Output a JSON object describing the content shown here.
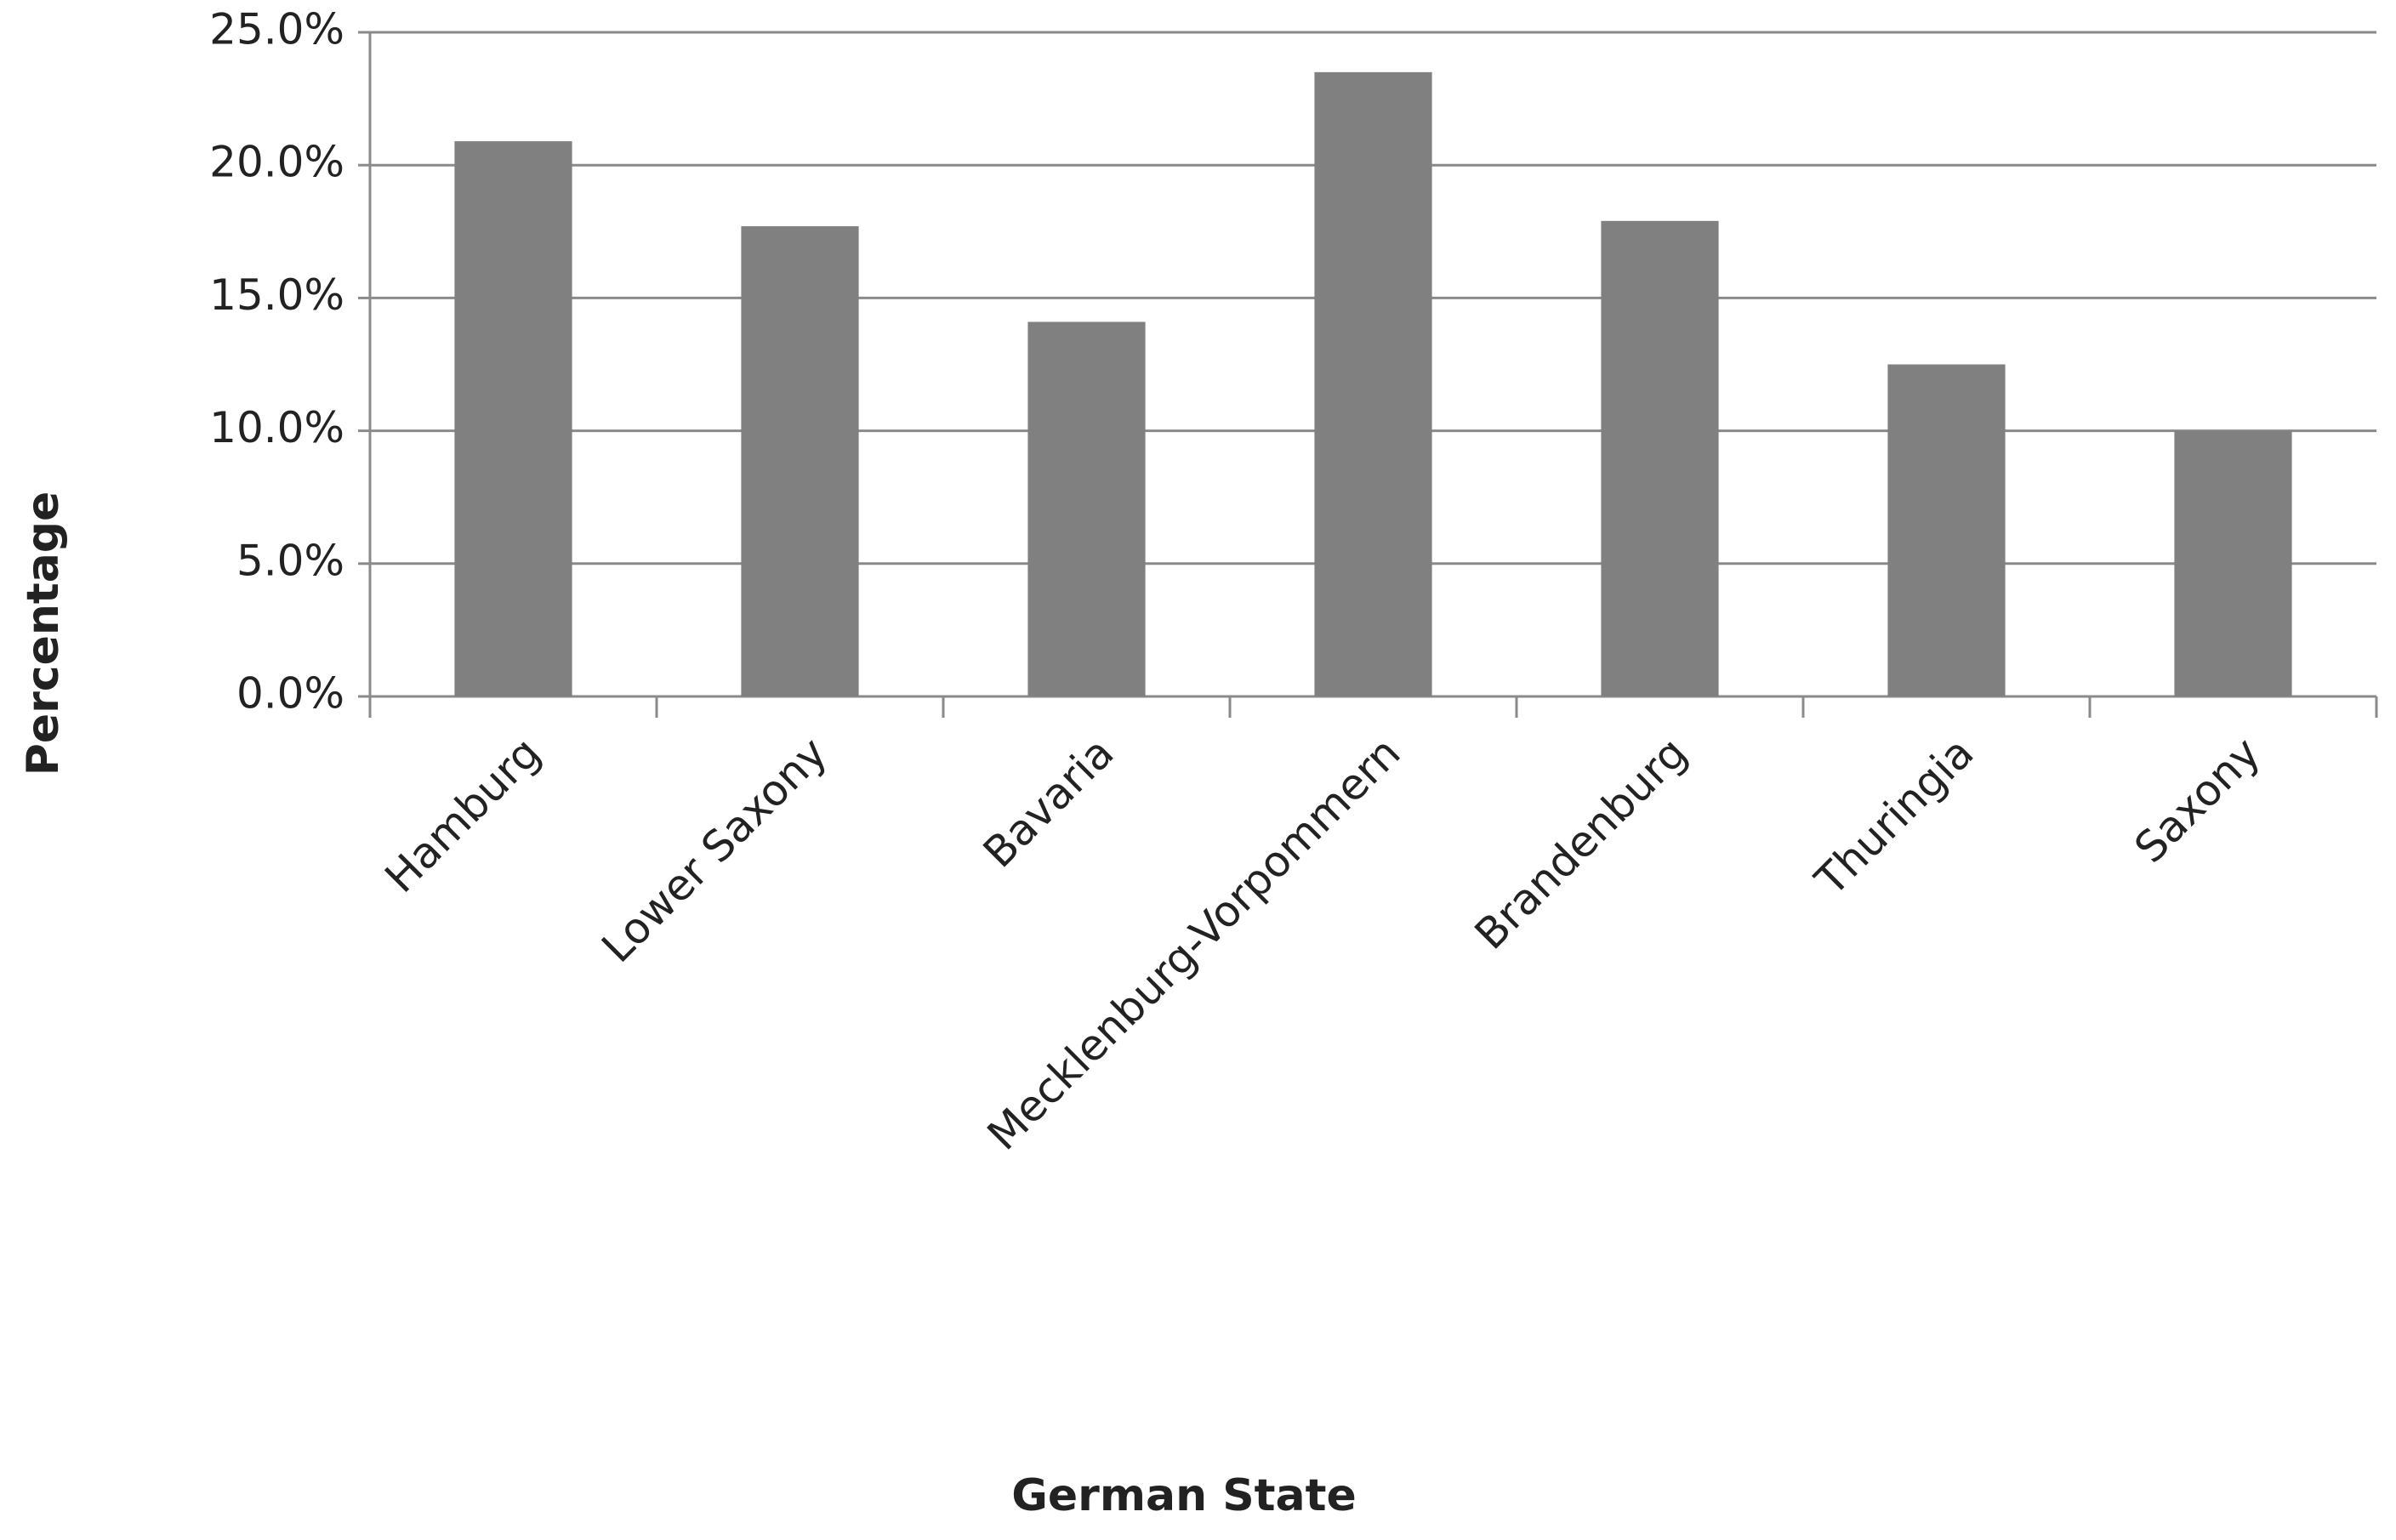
{
  "chart_data": {
    "type": "bar",
    "x_label": "German State",
    "y_label": "Percentage",
    "categories": [
      "Hamburg",
      "Lower Saxony",
      "Bavaria",
      "Mecklenburg-Vorpommern",
      "Brandenburg",
      "Thuringia",
      "Saxony"
    ],
    "values": [
      20.9,
      17.7,
      14.1,
      23.5,
      17.9,
      12.5,
      10.0
    ],
    "color": "#808080",
    "ylim": [
      0,
      25
    ],
    "yticks": [
      {
        "value": 0,
        "label": "0.0%"
      },
      {
        "value": 5,
        "label": "5.0%"
      },
      {
        "value": 10,
        "label": "10.0%"
      },
      {
        "value": 15,
        "label": "15.0%"
      },
      {
        "value": 20,
        "label": "20.0%"
      },
      {
        "value": 25,
        "label": "25.0%"
      }
    ],
    "grid": true
  }
}
